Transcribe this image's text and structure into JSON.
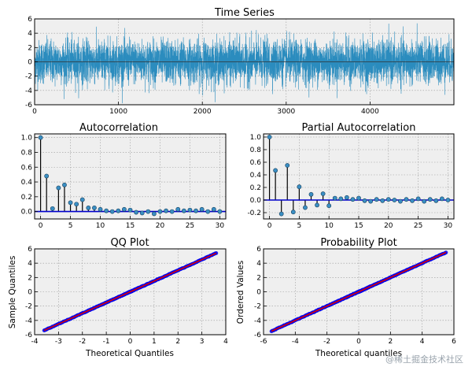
{
  "watermark": "@稀土掘金技术社区",
  "chart_data": [
    {
      "id": "ts",
      "type": "line",
      "title": "Time Series",
      "xlabel": "",
      "ylabel": "",
      "xlim": [
        0,
        5000
      ],
      "ylim": [
        -6,
        6
      ],
      "xticks": [
        0,
        1000,
        2000,
        3000,
        4000
      ],
      "yticks": [
        -6,
        -4,
        -2,
        0,
        2,
        4,
        6
      ],
      "n_points": 5000,
      "approx_std": 1.5,
      "line_color": "#2b8cbe",
      "zero_line_color": "#333333",
      "grid": true
    },
    {
      "id": "acf",
      "type": "stem",
      "title": "Autocorrelation",
      "xlabel": "",
      "ylabel": "",
      "xlim": [
        -1,
        31
      ],
      "ylim": [
        -0.1,
        1.05
      ],
      "xticks": [
        0,
        5,
        10,
        15,
        20,
        25,
        30
      ],
      "yticks": [
        0.0,
        0.2,
        0.4,
        0.6,
        0.8,
        1.0
      ],
      "lags": [
        0,
        1,
        2,
        3,
        4,
        5,
        6,
        7,
        8,
        9,
        10,
        11,
        12,
        13,
        14,
        15,
        16,
        17,
        18,
        19,
        20,
        21,
        22,
        23,
        24,
        25,
        26,
        27,
        28,
        29,
        30
      ],
      "values": [
        1.0,
        0.48,
        0.04,
        0.32,
        0.36,
        0.12,
        0.1,
        0.16,
        0.05,
        0.05,
        0.03,
        0.01,
        0.0,
        0.01,
        0.03,
        0.02,
        -0.01,
        -0.02,
        0.0,
        -0.03,
        0.0,
        0.01,
        0.0,
        0.03,
        0.01,
        0.02,
        0.01,
        0.03,
        0.0,
        0.03,
        0.0
      ],
      "stem_color": "#000000",
      "marker_color": "#3a8fc4",
      "zero_line_color": "#0000cc",
      "grid": true
    },
    {
      "id": "pacf",
      "type": "stem",
      "title": "Partial Autocorrelation",
      "xlabel": "",
      "ylabel": "",
      "xlim": [
        -1,
        31
      ],
      "ylim": [
        -0.3,
        1.05
      ],
      "xticks": [
        0,
        5,
        10,
        15,
        20,
        25,
        30
      ],
      "yticks": [
        -0.2,
        0.0,
        0.2,
        0.4,
        0.6,
        0.8,
        1.0
      ],
      "lags": [
        0,
        1,
        2,
        3,
        4,
        5,
        6,
        7,
        8,
        9,
        10,
        11,
        12,
        13,
        14,
        15,
        16,
        17,
        18,
        19,
        20,
        21,
        22,
        23,
        24,
        25,
        26,
        27,
        28,
        29,
        30
      ],
      "values": [
        1.0,
        0.47,
        -0.22,
        0.55,
        -0.19,
        0.21,
        -0.12,
        0.09,
        -0.08,
        0.1,
        -0.09,
        0.03,
        0.02,
        0.04,
        0.01,
        0.03,
        -0.01,
        -0.02,
        0.01,
        -0.01,
        0.01,
        0.0,
        -0.02,
        0.01,
        -0.01,
        0.02,
        -0.02,
        0.01,
        -0.01,
        0.02,
        0.0
      ],
      "stem_color": "#000000",
      "marker_color": "#3a8fc4",
      "zero_line_color": "#0000cc",
      "grid": true
    },
    {
      "id": "qq",
      "type": "scatter",
      "title": "QQ Plot",
      "xlabel": "Theoretical Quantiles",
      "ylabel": "Sample Quantiles",
      "xlim": [
        -4,
        4
      ],
      "ylim": [
        -6,
        6
      ],
      "xticks": [
        -4,
        -3,
        -2,
        -1,
        0,
        1,
        2,
        3,
        4
      ],
      "yticks": [
        -6,
        -4,
        -2,
        0,
        2,
        4,
        6
      ],
      "x_range": [
        -3.6,
        3.6
      ],
      "slope": 1.5,
      "marker_color": "#0000ee",
      "fit_line_color": "#dd0000",
      "grid": true
    },
    {
      "id": "prob",
      "type": "scatter",
      "title": "Probability Plot",
      "xlabel": "Theoretical quantiles",
      "ylabel": "Ordered Values",
      "xlim": [
        -6,
        6
      ],
      "ylim": [
        -6,
        6
      ],
      "xticks": [
        -6,
        -4,
        -2,
        0,
        2,
        4,
        6
      ],
      "yticks": [
        -6,
        -4,
        -2,
        0,
        2,
        4,
        6
      ],
      "x_range": [
        -5.5,
        5.5
      ],
      "slope": 1.0,
      "marker_color": "#0000ee",
      "fit_line_color": "#dd0000",
      "grid": true
    }
  ]
}
